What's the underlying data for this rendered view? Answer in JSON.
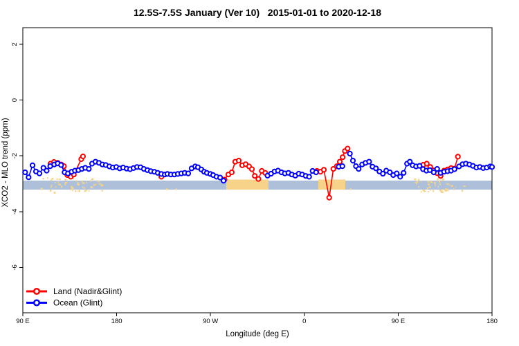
{
  "chart_data": {
    "type": "line",
    "title": "12.5S-7.5S January (Ver 10)   2015-01-01 to 2020-12-18",
    "xlabel": "Longitude (deg E)",
    "ylabel": "XCO2 - MLO trend (ppm)",
    "x_axis": {
      "span": 450,
      "note": "axis starts at 90E and wraps eastward 450 degrees",
      "ticks": [
        {
          "pos": 0,
          "label": "90 E"
        },
        {
          "pos": 90,
          "label": "180"
        },
        {
          "pos": 180,
          "label": "90 W"
        },
        {
          "pos": 270,
          "label": "0"
        },
        {
          "pos": 360,
          "label": "90 E"
        },
        {
          "pos": 450,
          "label": "180"
        }
      ]
    },
    "y_axis": {
      "ticks": [
        2,
        0,
        -2,
        -4,
        -6
      ],
      "range": [
        -7.6,
        2.6
      ]
    },
    "band": {
      "description": "surface-type strip along longitude: ocean (blue) vs land (orange)",
      "ocean_color": "#AEC0D9",
      "land_color": "#F6D388",
      "value_range": [
        -2.89,
        -3.21
      ],
      "solid_land_segments": [
        [
          195.1,
          235.6
        ],
        [
          283.4,
          309.3
        ]
      ],
      "speckle_land_segments": [
        [
          16.6,
          75.7
        ],
        [
          374.3,
          422.8
        ]
      ],
      "speckle_extra": [
        137.4,
        146.1,
        313.5
      ]
    },
    "series": [
      {
        "name": "Land (Nadir&Glint)",
        "color": "#FF0000",
        "segments": [
          [
            [
              26.5,
              -2.28
            ],
            [
              29.9,
              -2.22
            ],
            [
              33.4,
              -2.25
            ],
            [
              36.7,
              -2.31
            ],
            [
              39.4,
              -2.37
            ],
            [
              42.7,
              -2.69
            ],
            [
              46,
              -2.75
            ],
            [
              48.9,
              -2.67
            ],
            [
              56,
              -2.12
            ],
            [
              57.7,
              -2.02
            ]
          ],
          [
            [
              132.8,
              -2.75
            ]
          ],
          [
            [
              193.5,
              -2.85
            ],
            [
              197.1,
              -2.67
            ],
            [
              200.4,
              -2.59
            ],
            [
              203.7,
              -2.21
            ],
            [
              207.1,
              -2.17
            ],
            [
              210.4,
              -2.34
            ],
            [
              213.7,
              -2.3
            ],
            [
              217,
              -2.38
            ],
            [
              219.7,
              -2.48
            ],
            [
              222.5,
              -2.72
            ],
            [
              225.9,
              -2.83
            ],
            [
              229.2,
              -2.54
            ],
            [
              232.5,
              -2.61
            ]
          ],
          [
            [
              282.1,
              -2.54
            ],
            [
              285.4,
              -2.57
            ],
            [
              288.7,
              -2.5
            ],
            [
              293.8,
              -3.5
            ],
            [
              297.8,
              -2.47
            ],
            [
              301.2,
              -2.37
            ],
            [
              304,
              -2.21
            ],
            [
              306.7,
              -2.05
            ],
            [
              308.9,
              -1.83
            ],
            [
              311.5,
              -1.74
            ]
          ],
          [
            [
              384.1,
              -2.32
            ],
            [
              387.4,
              -2.28
            ],
            [
              390.7,
              -2.4
            ],
            [
              394,
              -2.52
            ],
            [
              397.4,
              -2.62
            ],
            [
              400.7,
              -2.72
            ],
            [
              404,
              -2.53
            ],
            [
              407.4,
              -2.49
            ],
            [
              410.7,
              -2.44
            ],
            [
              414,
              -2.46
            ],
            [
              417.3,
              -2.03
            ]
          ]
        ]
      },
      {
        "name": "Ocean (Glint)",
        "color": "#0000FF",
        "segments": [
          [
            [
              2.2,
              -2.59
            ],
            [
              5.5,
              -2.77
            ],
            [
              9.3,
              -2.34
            ],
            [
              12.6,
              -2.56
            ],
            [
              15.9,
              -2.63
            ],
            [
              19.7,
              -2.43
            ],
            [
              22.8,
              -2.53
            ],
            [
              26.3,
              -2.37
            ],
            [
              30.1,
              -2.31
            ],
            [
              33.4,
              -2.27
            ],
            [
              36.7,
              -2.33
            ],
            [
              40,
              -2.59
            ],
            [
              43.3,
              -2.63
            ],
            [
              46.7,
              -2.57
            ],
            [
              50,
              -2.53
            ],
            [
              53.3,
              -2.51
            ],
            [
              56.6,
              -2.47
            ],
            [
              59.9,
              -2.43
            ],
            [
              63.3,
              -2.47
            ],
            [
              66.4,
              -2.28
            ],
            [
              69.7,
              -2.21
            ],
            [
              73,
              -2.25
            ],
            [
              76.3,
              -2.31
            ],
            [
              79.6,
              -2.33
            ],
            [
              83,
              -2.38
            ],
            [
              86.3,
              -2.42
            ],
            [
              89.6,
              -2.4
            ],
            [
              92.9,
              -2.45
            ],
            [
              96.2,
              -2.42
            ],
            [
              99.6,
              -2.46
            ],
            [
              102.9,
              -2.48
            ],
            [
              106.2,
              -2.44
            ],
            [
              109.5,
              -2.4
            ],
            [
              112.8,
              -2.41
            ],
            [
              116.1,
              -2.47
            ],
            [
              119.5,
              -2.51
            ],
            [
              122.8,
              -2.55
            ],
            [
              126.1,
              -2.57
            ],
            [
              129.4,
              -2.61
            ],
            [
              132.8,
              -2.65
            ],
            [
              136.1,
              -2.67
            ],
            [
              138.7,
              -2.65
            ],
            [
              142,
              -2.67
            ],
            [
              145.3,
              -2.67
            ],
            [
              148.7,
              -2.65
            ],
            [
              152,
              -2.63
            ],
            [
              155.3,
              -2.61
            ],
            [
              158.6,
              -2.63
            ],
            [
              161.9,
              -2.45
            ],
            [
              165.3,
              -2.38
            ],
            [
              167.9,
              -2.41
            ],
            [
              171.2,
              -2.49
            ],
            [
              173.9,
              -2.57
            ],
            [
              176.5,
              -2.61
            ],
            [
              179.9,
              -2.65
            ],
            [
              182.5,
              -2.69
            ],
            [
              185.8,
              -2.75
            ],
            [
              189.2,
              -2.78
            ],
            [
              192.5,
              -2.89
            ]
          ],
          [
            [
              234.7,
              -2.71
            ],
            [
              238.1,
              -2.64
            ],
            [
              241.4,
              -2.56
            ],
            [
              244.7,
              -2.53
            ],
            [
              248,
              -2.59
            ],
            [
              251.3,
              -2.63
            ],
            [
              254.7,
              -2.61
            ],
            [
              258,
              -2.67
            ],
            [
              261.3,
              -2.71
            ],
            [
              264.6,
              -2.64
            ],
            [
              267.9,
              -2.67
            ],
            [
              271.3,
              -2.72
            ],
            [
              274.6,
              -2.75
            ],
            [
              277.9,
              -2.54
            ],
            [
              281.2,
              -2.59
            ]
          ],
          [
            [
              303,
              -2.39
            ],
            [
              306.5,
              -2.37
            ]
          ],
          [
            [
              313.7,
              -1.92
            ],
            [
              316.6,
              -2.17
            ],
            [
              319.5,
              -2.37
            ],
            [
              322.1,
              -2.47
            ],
            [
              325.4,
              -2.31
            ],
            [
              328.7,
              -2.25
            ],
            [
              332.1,
              -2.21
            ],
            [
              335.4,
              -2.39
            ],
            [
              338.7,
              -2.45
            ],
            [
              342,
              -2.56
            ],
            [
              345.3,
              -2.64
            ],
            [
              348.6,
              -2.53
            ],
            [
              352,
              -2.59
            ],
            [
              355.3,
              -2.69
            ],
            [
              358.6,
              -2.63
            ],
            [
              361.9,
              -2.75
            ],
            [
              365.2,
              -2.61
            ],
            [
              368.5,
              -2.28
            ],
            [
              371.2,
              -2.21
            ],
            [
              373.9,
              -2.34
            ],
            [
              377.2,
              -2.38
            ],
            [
              380.5,
              -2.36
            ],
            [
              383.8,
              -2.48
            ],
            [
              387.1,
              -2.53
            ],
            [
              390.4,
              -2.51
            ],
            [
              394.1,
              -2.59
            ],
            [
              397.4,
              -2.47
            ],
            [
              400.7,
              -2.61
            ],
            [
              404,
              -2.57
            ],
            [
              407.4,
              -2.55
            ],
            [
              410.7,
              -2.53
            ],
            [
              414,
              -2.48
            ],
            [
              418.4,
              -2.38
            ],
            [
              421.7,
              -2.3
            ],
            [
              425,
              -2.28
            ],
            [
              428.3,
              -2.31
            ],
            [
              431.7,
              -2.36
            ],
            [
              435,
              -2.42
            ],
            [
              438.3,
              -2.4
            ],
            [
              441.6,
              -2.44
            ],
            [
              444.9,
              -2.42
            ],
            [
              448.3,
              -2.38
            ],
            [
              450,
              -2.4
            ]
          ]
        ]
      }
    ]
  },
  "legend": {
    "items": [
      {
        "label": "Land (Nadir&Glint)",
        "color": "#FF0000"
      },
      {
        "label": "Ocean (Glint)",
        "color": "#0000FF"
      }
    ]
  }
}
